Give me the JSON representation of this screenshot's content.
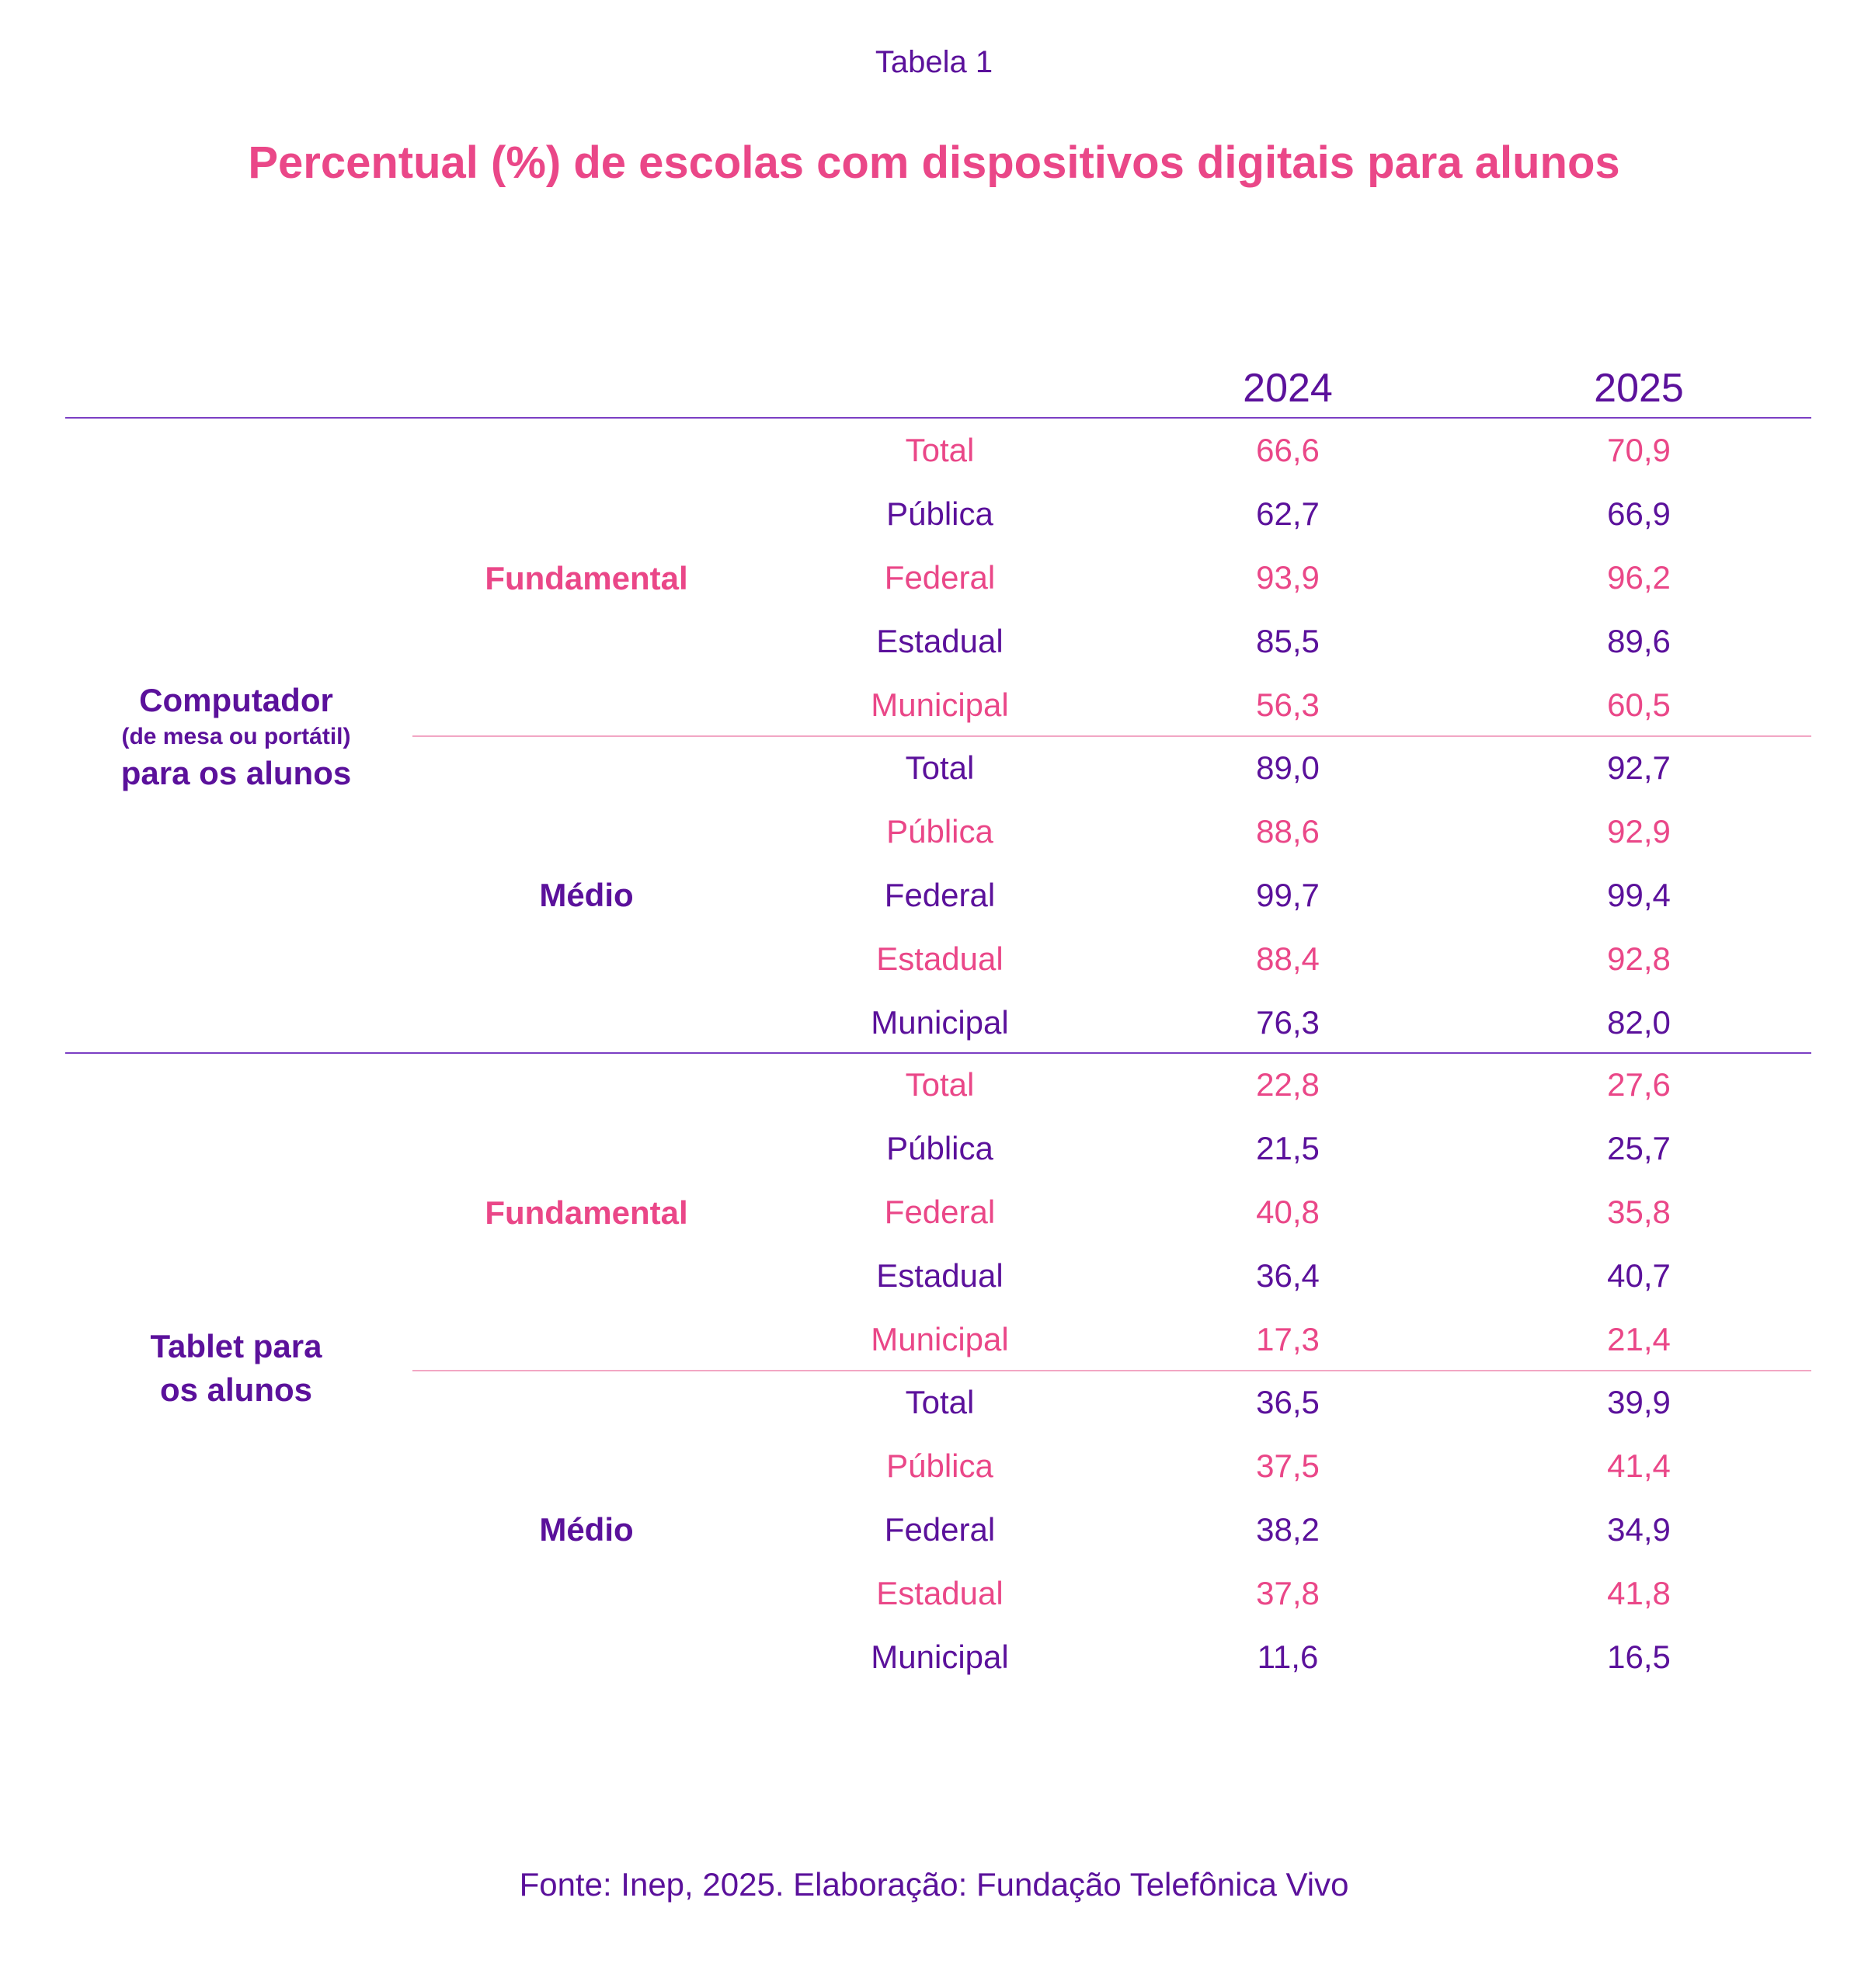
{
  "table_label": "Tabela 1",
  "title": "Percentual (%) de escolas com dispositivos digitais para alunos",
  "columns": [
    "2024",
    "2025"
  ],
  "sections": [
    {
      "label_line1": "Computador",
      "label_small": "(de mesa ou portátil)",
      "label_line2": "para os alunos",
      "groups": [
        {
          "level": "Fundamental",
          "rows": [
            {
              "name": "Total",
              "y2024": "66,6",
              "y2025": "70,9"
            },
            {
              "name": "Pública",
              "y2024": "62,7",
              "y2025": "66,9"
            },
            {
              "name": "Federal",
              "y2024": "93,9",
              "y2025": "96,2"
            },
            {
              "name": "Estadual",
              "y2024": "85,5",
              "y2025": "89,6"
            },
            {
              "name": "Municipal",
              "y2024": "56,3",
              "y2025": "60,5"
            }
          ]
        },
        {
          "level": "Médio",
          "rows": [
            {
              "name": "Total",
              "y2024": "89,0",
              "y2025": "92,7"
            },
            {
              "name": "Pública",
              "y2024": "88,6",
              "y2025": "92,9"
            },
            {
              "name": "Federal",
              "y2024": "99,7",
              "y2025": "99,4"
            },
            {
              "name": "Estadual",
              "y2024": "88,4",
              "y2025": "92,8"
            },
            {
              "name": "Municipal",
              "y2024": "76,3",
              "y2025": "82,0"
            }
          ]
        }
      ]
    },
    {
      "label_line1": "Tablet para",
      "label_line2": "os alunos",
      "groups": [
        {
          "level": "Fundamental",
          "rows": [
            {
              "name": "Total",
              "y2024": "22,8",
              "y2025": "27,6"
            },
            {
              "name": "Pública",
              "y2024": "21,5",
              "y2025": "25,7"
            },
            {
              "name": "Federal",
              "y2024": "40,8",
              "y2025": "35,8"
            },
            {
              "name": "Estadual",
              "y2024": "36,4",
              "y2025": "40,7"
            },
            {
              "name": "Municipal",
              "y2024": "17,3",
              "y2025": "21,4"
            }
          ]
        },
        {
          "level": "Médio",
          "rows": [
            {
              "name": "Total",
              "y2024": "36,5",
              "y2025": "39,9"
            },
            {
              "name": "Pública",
              "y2024": "37,5",
              "y2025": "41,4"
            },
            {
              "name": "Federal",
              "y2024": "38,2",
              "y2025": "34,9"
            },
            {
              "name": "Estadual",
              "y2024": "37,8",
              "y2025": "41,8"
            },
            {
              "name": "Municipal",
              "y2024": "11,6",
              "y2025": "16,5"
            }
          ]
        }
      ]
    }
  ],
  "source": "Fonte: Inep, 2025. Elaboração: Fundação Telefônica Vivo",
  "colors": {
    "purple": "#5B119B",
    "pink": "#EA4788"
  }
}
